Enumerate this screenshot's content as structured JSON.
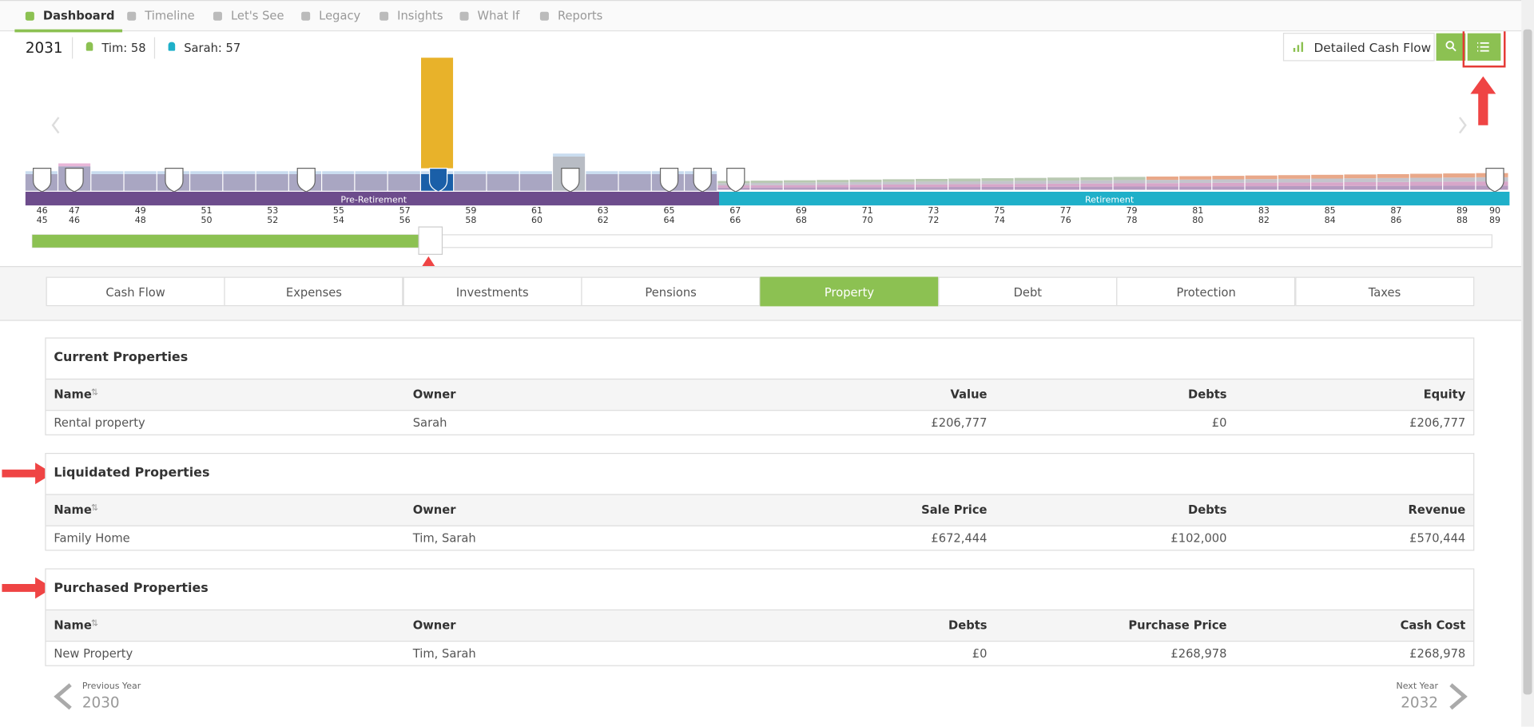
{
  "nav": {
    "tabs": [
      "Dashboard",
      "Timeline",
      "Let's See",
      "Legacy",
      "Insights",
      "What If",
      "Reports"
    ],
    "active": 0
  },
  "header": {
    "year": 2031,
    "people": [
      "Tim: 58",
      "Sarah: 57"
    ],
    "button": "Detailed Cash Flow"
  },
  "timeline": {
    "phases": [
      "Pre-Retirement",
      "Retirement"
    ],
    "ages_top": [
      46,
      47,
      49,
      51,
      53,
      55,
      57,
      59,
      61,
      63,
      65,
      67,
      69,
      71,
      73,
      75,
      77,
      79,
      81,
      83,
      85,
      87,
      89,
      90
    ],
    "ages_bottom": [
      45,
      46,
      48,
      50,
      52,
      54,
      56,
      58,
      60,
      62,
      64,
      66,
      68,
      70,
      72,
      74,
      76,
      78,
      80,
      82,
      84,
      86,
      88,
      89
    ]
  },
  "tabs": {
    "items": [
      "Cash Flow",
      "Expenses",
      "Investments",
      "Pensions",
      "Property",
      "Debt",
      "Protection",
      "Taxes"
    ],
    "active": 4
  },
  "sections": [
    {
      "title": "Current Properties",
      "columns": [
        "Name",
        "Owner",
        "Value",
        "Debts",
        "Equity"
      ],
      "rows": [
        [
          "Rental property",
          "Sarah",
          "£206,777",
          "£0",
          "£206,777"
        ]
      ]
    },
    {
      "title": "Liquidated Properties",
      "columns": [
        "Name",
        "Owner",
        "Sale Price",
        "Debts",
        "Revenue"
      ],
      "rows": [
        [
          "Family Home",
          "Tim, Sarah",
          "£672,444",
          "£102,000",
          "£570,444"
        ]
      ]
    },
    {
      "title": "Purchased Properties",
      "columns": [
        "Name",
        "Owner",
        "Debts",
        "Purchase Price",
        "Cash Cost"
      ],
      "rows": [
        [
          "New Property",
          "Tim, Sarah",
          "£0",
          "£268,978",
          "£268,978"
        ]
      ]
    }
  ],
  "footer": {
    "prev_label": "Previous Year",
    "prev_year": 2030,
    "next_label": "Next Year",
    "next_year": 2032
  }
}
